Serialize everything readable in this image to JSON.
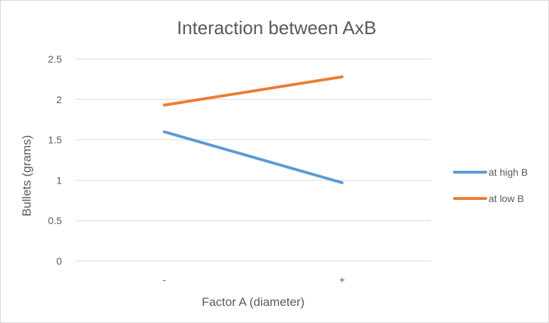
{
  "chart_data": {
    "type": "line",
    "title": "Interaction between AxB",
    "xlabel": "Factor A (diameter)",
    "ylabel": "Bullets (grams)",
    "categories": [
      "-",
      "+"
    ],
    "ylim": [
      0,
      2.5
    ],
    "yticks": [
      0,
      0.5,
      1,
      1.5,
      2,
      2.5
    ],
    "grid": true,
    "legend": "right",
    "series": [
      {
        "name": "at high B",
        "values": [
          1.6,
          0.97
        ],
        "color": "#5b9bd5"
      },
      {
        "name": "at low B",
        "values": [
          1.93,
          2.28
        ],
        "color": "#ed7d31"
      }
    ]
  }
}
